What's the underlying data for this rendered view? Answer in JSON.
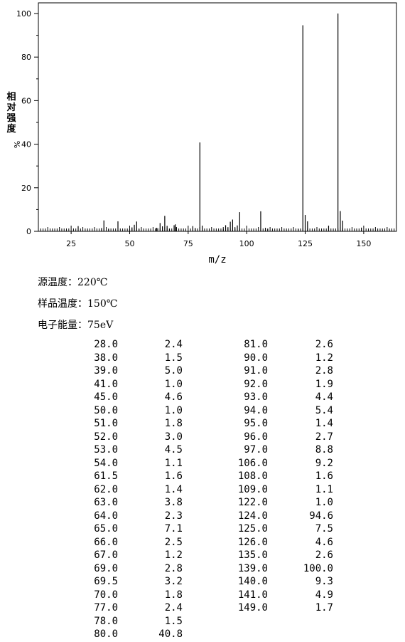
{
  "chart_data": {
    "type": "bar",
    "xlabel": "m/z",
    "ylabel": "相对强度",
    "ylabel_unit": "%",
    "xlim": [
      11,
      164
    ],
    "ylim": [
      0,
      100
    ],
    "x_ticks": [
      25,
      50,
      75,
      100,
      125,
      150
    ],
    "y_ticks": [
      0,
      20,
      40,
      60,
      80,
      100
    ],
    "grid": false,
    "x": [
      28.0,
      38.0,
      39.0,
      41.0,
      45.0,
      50.0,
      51.0,
      52.0,
      53.0,
      54.0,
      61.5,
      62.0,
      63.0,
      64.0,
      65.0,
      66.0,
      67.0,
      69.0,
      69.5,
      70.0,
      77.0,
      78.0,
      80.0,
      81.0,
      90.0,
      91.0,
      92.0,
      93.0,
      94.0,
      95.0,
      96.0,
      97.0,
      106.0,
      108.0,
      109.0,
      122.0,
      124.0,
      125.0,
      126.0,
      135.0,
      139.0,
      140.0,
      141.0,
      149.0
    ],
    "values": [
      2.4,
      1.5,
      5.0,
      1.0,
      4.6,
      1.0,
      1.8,
      3.0,
      4.5,
      1.1,
      1.6,
      1.4,
      3.8,
      2.3,
      7.1,
      2.5,
      1.2,
      2.8,
      3.2,
      1.8,
      2.4,
      1.5,
      40.8,
      2.6,
      1.2,
      2.8,
      1.9,
      4.4,
      5.4,
      1.4,
      2.7,
      8.8,
      9.2,
      1.6,
      1.1,
      1.0,
      94.6,
      7.5,
      4.6,
      2.6,
      100.0,
      9.3,
      4.9,
      1.7
    ]
  },
  "conditions": [
    {
      "label": "源温度：",
      "value": "220℃"
    },
    {
      "label": "样品温度：",
      "value": "150℃"
    },
    {
      "label": "电子能量：",
      "value": "75eV"
    }
  ],
  "table": [
    [
      "28.0",
      "2.4",
      "81.0",
      "2.6"
    ],
    [
      "38.0",
      "1.5",
      "90.0",
      "1.2"
    ],
    [
      "39.0",
      "5.0",
      "91.0",
      "2.8"
    ],
    [
      "41.0",
      "1.0",
      "92.0",
      "1.9"
    ],
    [
      "45.0",
      "4.6",
      "93.0",
      "4.4"
    ],
    [
      "50.0",
      "1.0",
      "94.0",
      "5.4"
    ],
    [
      "51.0",
      "1.8",
      "95.0",
      "1.4"
    ],
    [
      "52.0",
      "3.0",
      "96.0",
      "2.7"
    ],
    [
      "53.0",
      "4.5",
      "97.0",
      "8.8"
    ],
    [
      "54.0",
      "1.1",
      "106.0",
      "9.2"
    ],
    [
      "61.5",
      "1.6",
      "108.0",
      "1.6"
    ],
    [
      "62.0",
      "1.4",
      "109.0",
      "1.1"
    ],
    [
      "63.0",
      "3.8",
      "122.0",
      "1.0"
    ],
    [
      "64.0",
      "2.3",
      "124.0",
      "94.6"
    ],
    [
      "65.0",
      "7.1",
      "125.0",
      "7.5"
    ],
    [
      "66.0",
      "2.5",
      "126.0",
      "4.6"
    ],
    [
      "67.0",
      "1.2",
      "135.0",
      "2.6"
    ],
    [
      "69.0",
      "2.8",
      "139.0",
      "100.0"
    ],
    [
      "69.5",
      "3.2",
      "140.0",
      "9.3"
    ],
    [
      "70.0",
      "1.8",
      "141.0",
      "4.9"
    ],
    [
      "77.0",
      "2.4",
      "149.0",
      "1.7"
    ],
    [
      "78.0",
      "1.5",
      "",
      ""
    ],
    [
      "80.0",
      "40.8",
      "",
      ""
    ]
  ]
}
